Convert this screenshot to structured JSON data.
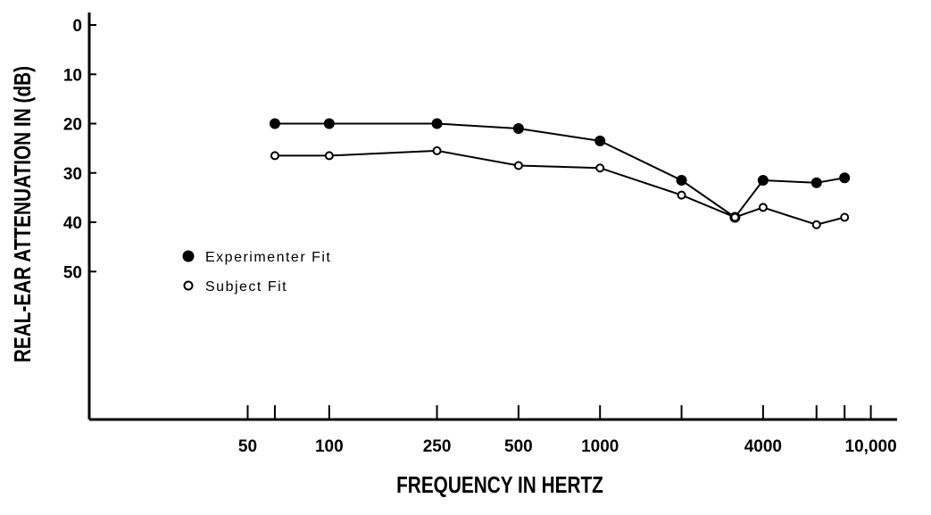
{
  "chart_data": {
    "type": "line",
    "xlabel": "FREQUENCY IN HERTZ",
    "ylabel": "REAL-EAR ATTENUATION IN (dB)",
    "x": [
      63,
      100,
      250,
      500,
      1000,
      2000,
      3150,
      4000,
      6300,
      8000
    ],
    "series": [
      {
        "name": "Experimenter Fit",
        "color": "#000000",
        "marker": "filled",
        "values": [
          20,
          20,
          20,
          21,
          23.5,
          31.5,
          39,
          31.5,
          32,
          31
        ]
      },
      {
        "name": "Subject Fit",
        "color": "#000000",
        "marker": "open",
        "values": [
          26.5,
          26.5,
          25.5,
          28.5,
          29,
          34.5,
          39,
          37,
          40.5,
          39
        ]
      }
    ],
    "xscale": "log",
    "xlim": [
      13,
      12500
    ],
    "xticks": [
      50,
      100,
      250,
      500,
      1000,
      4000,
      {
        "value": 10000,
        "label": "10,000"
      }
    ],
    "xminorticks": [
      63,
      2000,
      6300,
      8000
    ],
    "ylim": [
      0,
      80
    ],
    "yinverted": true,
    "yticks": [
      0,
      10,
      20,
      30,
      40,
      50
    ],
    "legend": "left"
  }
}
